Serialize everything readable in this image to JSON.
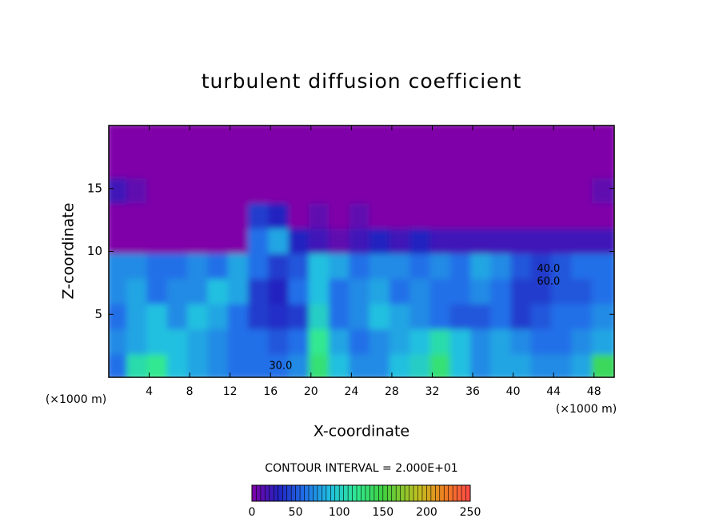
{
  "chart_data": {
    "type": "contour",
    "title": "turbulent diffusion coefficient",
    "x_label": "X-coordinate",
    "y_label": "Z-coordinate",
    "x_unit_left": "(×1000 m)",
    "x_unit_right": "(×1000 m)",
    "subtitle": "CONTOUR INTERVAL = 2.000E+01",
    "xlim": [
      0,
      50
    ],
    "ylim": [
      0,
      20
    ],
    "xticks": [
      4,
      8,
      12,
      16,
      20,
      24,
      28,
      32,
      36,
      40,
      44,
      48
    ],
    "yticks": [
      5,
      10,
      15
    ],
    "x": [
      1,
      3,
      5,
      7,
      9,
      11,
      13,
      15,
      17,
      19,
      21,
      23,
      25,
      27,
      29,
      31,
      33,
      35,
      37,
      39,
      41,
      43,
      45,
      47,
      49
    ],
    "y": [
      1,
      3,
      5,
      7,
      9,
      11,
      13,
      15,
      17,
      19
    ],
    "z": [
      [
        60,
        110,
        120,
        90,
        80,
        70,
        60,
        60,
        60,
        70,
        130,
        90,
        70,
        70,
        90,
        100,
        130,
        90,
        70,
        80,
        80,
        70,
        70,
        80,
        140
      ],
      [
        70,
        80,
        90,
        90,
        80,
        70,
        60,
        60,
        50,
        60,
        120,
        80,
        60,
        70,
        80,
        90,
        110,
        90,
        70,
        80,
        70,
        60,
        60,
        70,
        80
      ],
      [
        60,
        80,
        90,
        70,
        90,
        80,
        60,
        40,
        35,
        40,
        100,
        60,
        70,
        90,
        80,
        70,
        60,
        50,
        50,
        60,
        40,
        50,
        60,
        60,
        70
      ],
      [
        70,
        80,
        60,
        70,
        70,
        90,
        80,
        40,
        30,
        60,
        90,
        60,
        70,
        80,
        60,
        70,
        60,
        60,
        70,
        60,
        40,
        40,
        50,
        50,
        60
      ],
      [
        70,
        70,
        60,
        60,
        70,
        60,
        80,
        60,
        40,
        50,
        90,
        80,
        60,
        70,
        70,
        60,
        70,
        60,
        80,
        70,
        50,
        40,
        50,
        60,
        60
      ],
      [
        0,
        0,
        0,
        0,
        0,
        0,
        0,
        60,
        80,
        30,
        20,
        10,
        20,
        30,
        20,
        30,
        20,
        20,
        20,
        20,
        20,
        20,
        20,
        20,
        20
      ],
      [
        0,
        0,
        0,
        0,
        0,
        0,
        0,
        40,
        30,
        0,
        10,
        0,
        10,
        0,
        0,
        0,
        0,
        0,
        0,
        0,
        0,
        0,
        0,
        0,
        0
      ],
      [
        20,
        10,
        0,
        0,
        0,
        0,
        0,
        0,
        0,
        0,
        0,
        0,
        0,
        0,
        0,
        0,
        0,
        0,
        0,
        0,
        0,
        0,
        0,
        0,
        10
      ],
      [
        0,
        0,
        0,
        0,
        0,
        0,
        0,
        0,
        0,
        0,
        0,
        0,
        0,
        0,
        0,
        0,
        0,
        0,
        0,
        0,
        0,
        0,
        0,
        0,
        0
      ],
      [
        0,
        0,
        0,
        0,
        0,
        0,
        0,
        0,
        0,
        0,
        0,
        0,
        0,
        0,
        0,
        0,
        0,
        0,
        0,
        0,
        0,
        0,
        0,
        0,
        0
      ]
    ],
    "colorscale": [
      [
        0,
        "#7f00a8"
      ],
      [
        30,
        "#2222c0"
      ],
      [
        60,
        "#2070e8"
      ],
      [
        90,
        "#20c0e0"
      ],
      [
        120,
        "#30e890"
      ],
      [
        150,
        "#40d040"
      ],
      [
        190,
        "#c0c020"
      ],
      [
        220,
        "#f08020"
      ],
      [
        250,
        "#ff4848"
      ]
    ],
    "colorbar_lim": [
      0,
      250
    ],
    "colorbar_ticks": [
      0,
      50,
      100,
      150,
      200,
      250
    ],
    "annotations": [
      {
        "text": "30.0",
        "x": 17,
        "y": 0.9
      },
      {
        "text": "40.0",
        "x": 43.5,
        "y": 8.6
      },
      {
        "text": "60.0",
        "x": 43.5,
        "y": 7.6
      }
    ]
  }
}
